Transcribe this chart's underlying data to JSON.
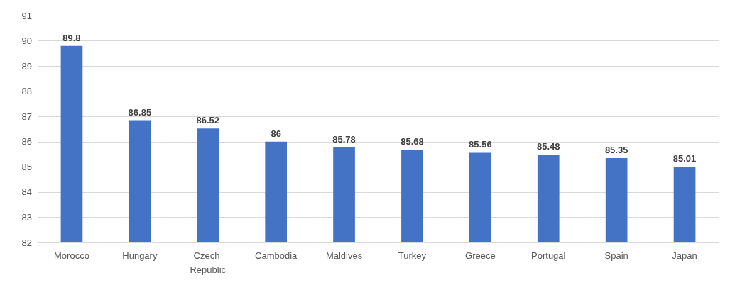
{
  "chart_data": {
    "type": "bar",
    "categories": [
      "Morocco",
      "Hungary",
      "Czech Republic",
      "Cambodia",
      "Maldives",
      "Turkey",
      "Greece",
      "Portugal",
      "Spain",
      "Japan"
    ],
    "values": [
      89.8,
      86.85,
      86.52,
      86,
      85.78,
      85.68,
      85.56,
      85.48,
      85.35,
      85.01
    ],
    "color": "#4472c4",
    "ylim": [
      82,
      91
    ],
    "yticks": [
      82,
      83,
      84,
      85,
      86,
      87,
      88,
      89,
      90,
      91
    ],
    "grid": "y",
    "data_labels": true
  }
}
